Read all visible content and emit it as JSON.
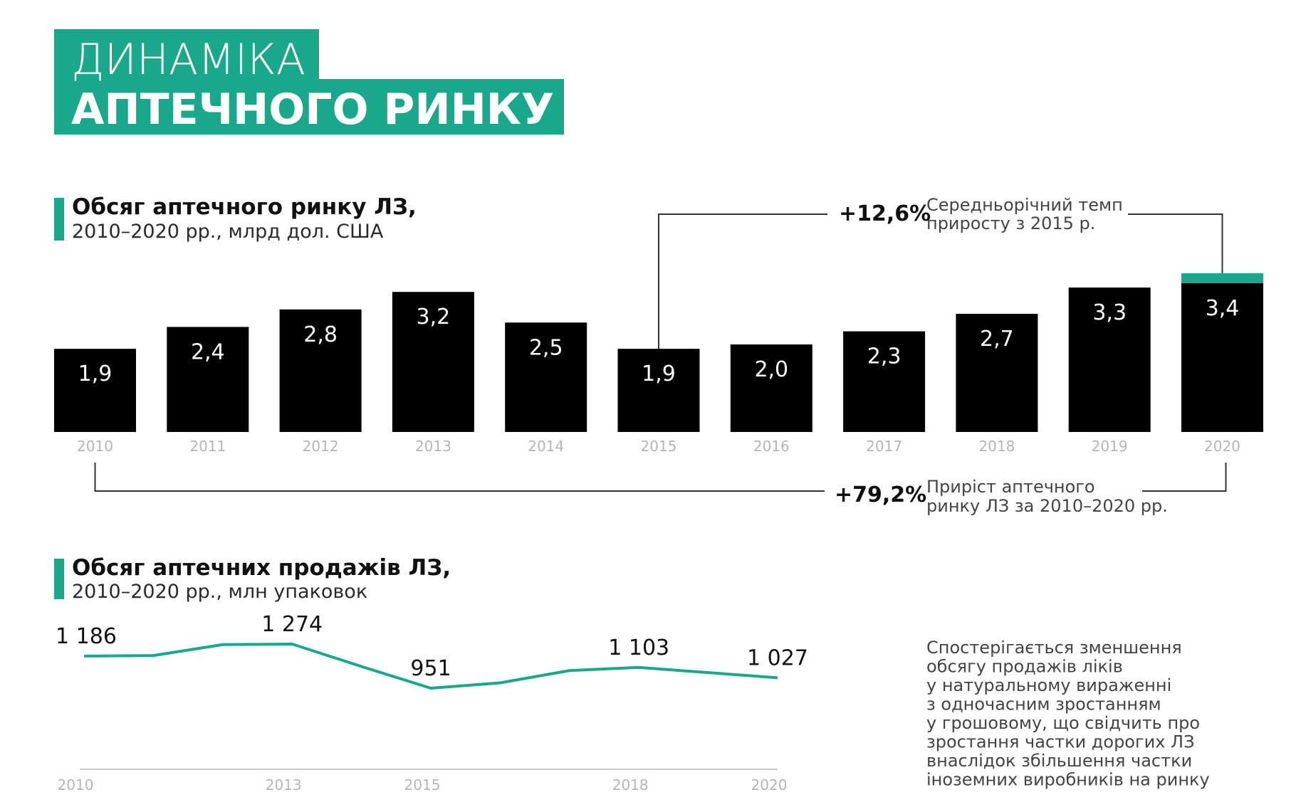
{
  "colors": {
    "accent": "#1aa88a",
    "bar": "#000000",
    "axis": "#b5b5b5",
    "bracket": "#333333"
  },
  "header": {
    "line1": "ДИНАМІКА",
    "line2": "АПТЕЧНОГО РИНКУ"
  },
  "chart_data": [
    {
      "type": "bar",
      "title": "Обсяг аптечного ринку ЛЗ,",
      "subtitle": "2010–2020 рр., млрд дол. США",
      "categories": [
        "2010",
        "2011",
        "2012",
        "2013",
        "2014",
        "2015",
        "2016",
        "2017",
        "2018",
        "2019",
        "2020"
      ],
      "values": [
        1.9,
        2.4,
        2.8,
        3.2,
        2.5,
        1.9,
        2.0,
        2.3,
        2.7,
        3.3,
        3.4
      ],
      "value_labels": [
        "1,9",
        "2,4",
        "2,8",
        "3,2",
        "2,5",
        "1,9",
        "2,0",
        "2,3",
        "2,7",
        "3,3",
        "3,4"
      ],
      "highlight": {
        "category": "2020",
        "color": "#1aa88a",
        "style": "top-accent"
      },
      "annotations": [
        {
          "value": "+12,6%",
          "text": [
            "Середньорічний темп",
            "приросту з 2015 р."
          ],
          "from": "2015",
          "to": "2020"
        },
        {
          "value": "+79,2%",
          "text": [
            "Приріст аптечного",
            "ринку ЛЗ за 2010–2020 рр."
          ],
          "from": "2010",
          "to": "2020"
        }
      ]
    },
    {
      "type": "line",
      "title": "Обсяг аптечних продажів ЛЗ,",
      "subtitle": "2010–2020 рр., млн упаковок",
      "x": [
        2010,
        2011,
        2012,
        2013,
        2014,
        2015,
        2016,
        2017,
        2018,
        2019,
        2020
      ],
      "values": [
        1186,
        1190,
        1270,
        1274,
        1110,
        951,
        990,
        1080,
        1103,
        1065,
        1027
      ],
      "labeled_points": [
        {
          "x": 2010,
          "label": "1 186"
        },
        {
          "x": 2013,
          "label": "1 274"
        },
        {
          "x": 2015,
          "label": "951"
        },
        {
          "x": 2018,
          "label": "1 103"
        },
        {
          "x": 2020,
          "label": "1 027"
        }
      ],
      "x_tick_labels": [
        "2010",
        "2013",
        "2015",
        "2018",
        "2020"
      ],
      "color": "#1aa88a"
    }
  ],
  "side_note": [
    "Спостерігається зменшення",
    "обсягу продажів ліків",
    "у натуральному вираженні",
    "з одночасним зростанням",
    "у грошовому, що свідчить про",
    "зростання частки дорогих ЛЗ",
    "внаслідок збільшення частки",
    "іноземних виробників на ринку"
  ]
}
